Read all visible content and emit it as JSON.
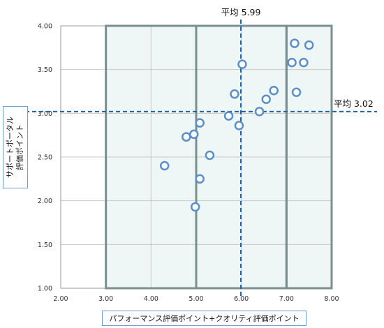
{
  "chart_data": {
    "type": "scatter",
    "xlabel": "パフォーマンス評価ポイント+クオリティ評価ポイント",
    "ylabel_lines": [
      "サポートポータル",
      "評価ポイント"
    ],
    "xlim": [
      2.0,
      8.0
    ],
    "ylim": [
      1.0,
      4.0
    ],
    "x_ticks": [
      "2.00",
      "3.00",
      "4.00",
      "5.00",
      "6.00",
      "7.00",
      "8.00"
    ],
    "y_ticks": [
      "1.00",
      "1.50",
      "2.00",
      "2.50",
      "3.00",
      "3.50",
      "4.00"
    ],
    "grid": true,
    "highlight_regions": [
      {
        "x_from": 3.0,
        "x_to": 5.0
      },
      {
        "x_from": 5.0,
        "x_to": 7.0
      },
      {
        "x_from": 7.0,
        "x_to": 8.0
      }
    ],
    "reference_lines": [
      {
        "axis": "x",
        "value": 5.99,
        "label": "平均 5.99"
      },
      {
        "axis": "y",
        "value": 3.02,
        "label": "平均 3.02"
      }
    ],
    "points": [
      {
        "x": 4.3,
        "y": 2.4
      },
      {
        "x": 4.78,
        "y": 2.73
      },
      {
        "x": 4.95,
        "y": 2.76
      },
      {
        "x": 4.98,
        "y": 1.93
      },
      {
        "x": 5.08,
        "y": 2.89
      },
      {
        "x": 5.08,
        "y": 2.25
      },
      {
        "x": 5.3,
        "y": 2.52
      },
      {
        "x": 5.72,
        "y": 2.97
      },
      {
        "x": 5.85,
        "y": 3.22
      },
      {
        "x": 5.95,
        "y": 2.86
      },
      {
        "x": 6.02,
        "y": 3.56
      },
      {
        "x": 6.4,
        "y": 3.02
      },
      {
        "x": 6.55,
        "y": 3.16
      },
      {
        "x": 6.72,
        "y": 3.26
      },
      {
        "x": 7.12,
        "y": 3.58
      },
      {
        "x": 7.18,
        "y": 3.8
      },
      {
        "x": 7.22,
        "y": 3.24
      },
      {
        "x": 7.38,
        "y": 3.58
      },
      {
        "x": 7.5,
        "y": 3.78
      }
    ],
    "colors": {
      "marker": "#5b8fc9",
      "reference_line": "#1f5fa8",
      "region_fill": "#eef6f6",
      "region_border": "#7a9090",
      "grid": "#c8c8c8"
    }
  }
}
